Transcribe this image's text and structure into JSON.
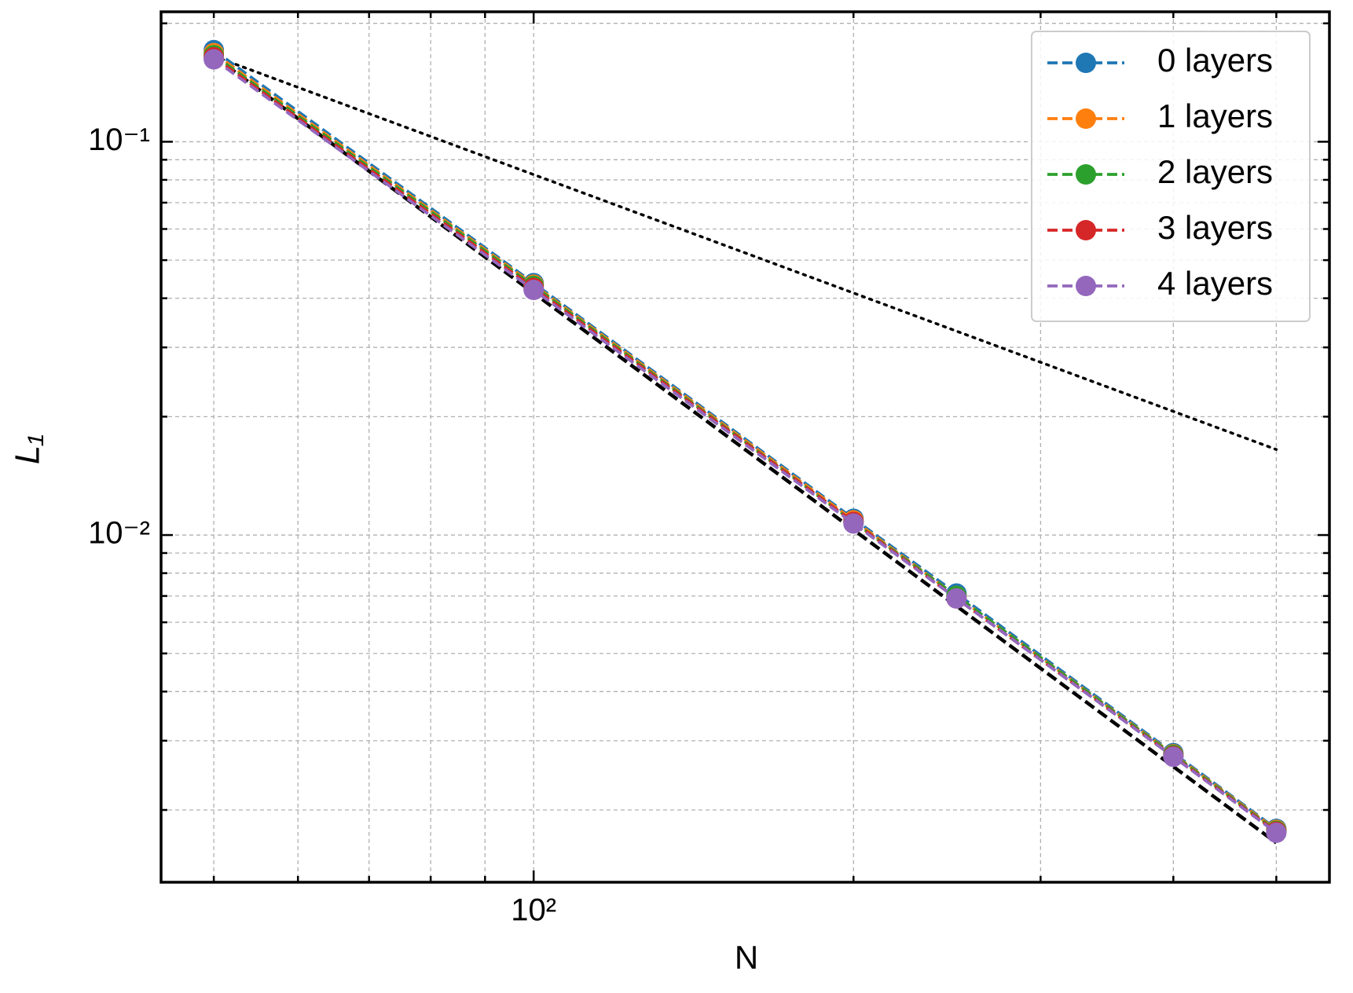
{
  "chart_data": {
    "type": "line",
    "xlabel": "N",
    "ylabel": "L₁",
    "x": [
      50,
      100,
      200,
      250,
      400,
      500
    ],
    "series": [
      {
        "name": "0 layers",
        "color": "#1f77b4",
        "values": [
          0.171,
          0.0437,
          0.011,
          0.0071,
          0.00279,
          0.00179
        ]
      },
      {
        "name": "1 layers",
        "color": "#ff7f0e",
        "values": [
          0.168,
          0.0433,
          0.0109,
          0.007,
          0.00277,
          0.00178
        ]
      },
      {
        "name": "2 layers",
        "color": "#2ca02c",
        "values": [
          0.166,
          0.043,
          0.0108,
          0.007,
          0.00276,
          0.00177
        ]
      },
      {
        "name": "3 layers",
        "color": "#d62728",
        "values": [
          0.164,
          0.0425,
          0.0108,
          0.0069,
          0.00274,
          0.00176
        ]
      },
      {
        "name": "4 layers",
        "color": "#9467bd",
        "values": [
          0.162,
          0.042,
          0.0107,
          0.0069,
          0.00273,
          0.00175
        ]
      }
    ],
    "reference_lines": [
      {
        "x": [
          50,
          500
        ],
        "values": [
          0.165,
          0.00165
        ],
        "style": "dashed",
        "color": "#000000"
      },
      {
        "x": [
          50,
          500
        ],
        "values": [
          0.165,
          0.0165
        ],
        "style": "dotted",
        "color": "#000000"
      }
    ],
    "xlog": true,
    "ylog": true,
    "xlim": [
      44.6,
      561
    ],
    "ylim": [
      0.00131,
      0.214
    ],
    "xticks": [
      {
        "value": 100,
        "label": "10²"
      }
    ],
    "yticks": [
      {
        "value": 0.01,
        "label": "10⁻²"
      },
      {
        "value": 0.1,
        "label": "10⁻¹"
      }
    ],
    "xminor": [
      50,
      60,
      70,
      80,
      90,
      200,
      300,
      400,
      500
    ],
    "yminor": [
      0.002,
      0.003,
      0.004,
      0.005,
      0.006,
      0.007,
      0.008,
      0.009,
      0.02,
      0.03,
      0.04,
      0.05,
      0.06,
      0.07,
      0.08,
      0.09,
      0.2
    ],
    "grid": true,
    "legend": "upper right"
  }
}
